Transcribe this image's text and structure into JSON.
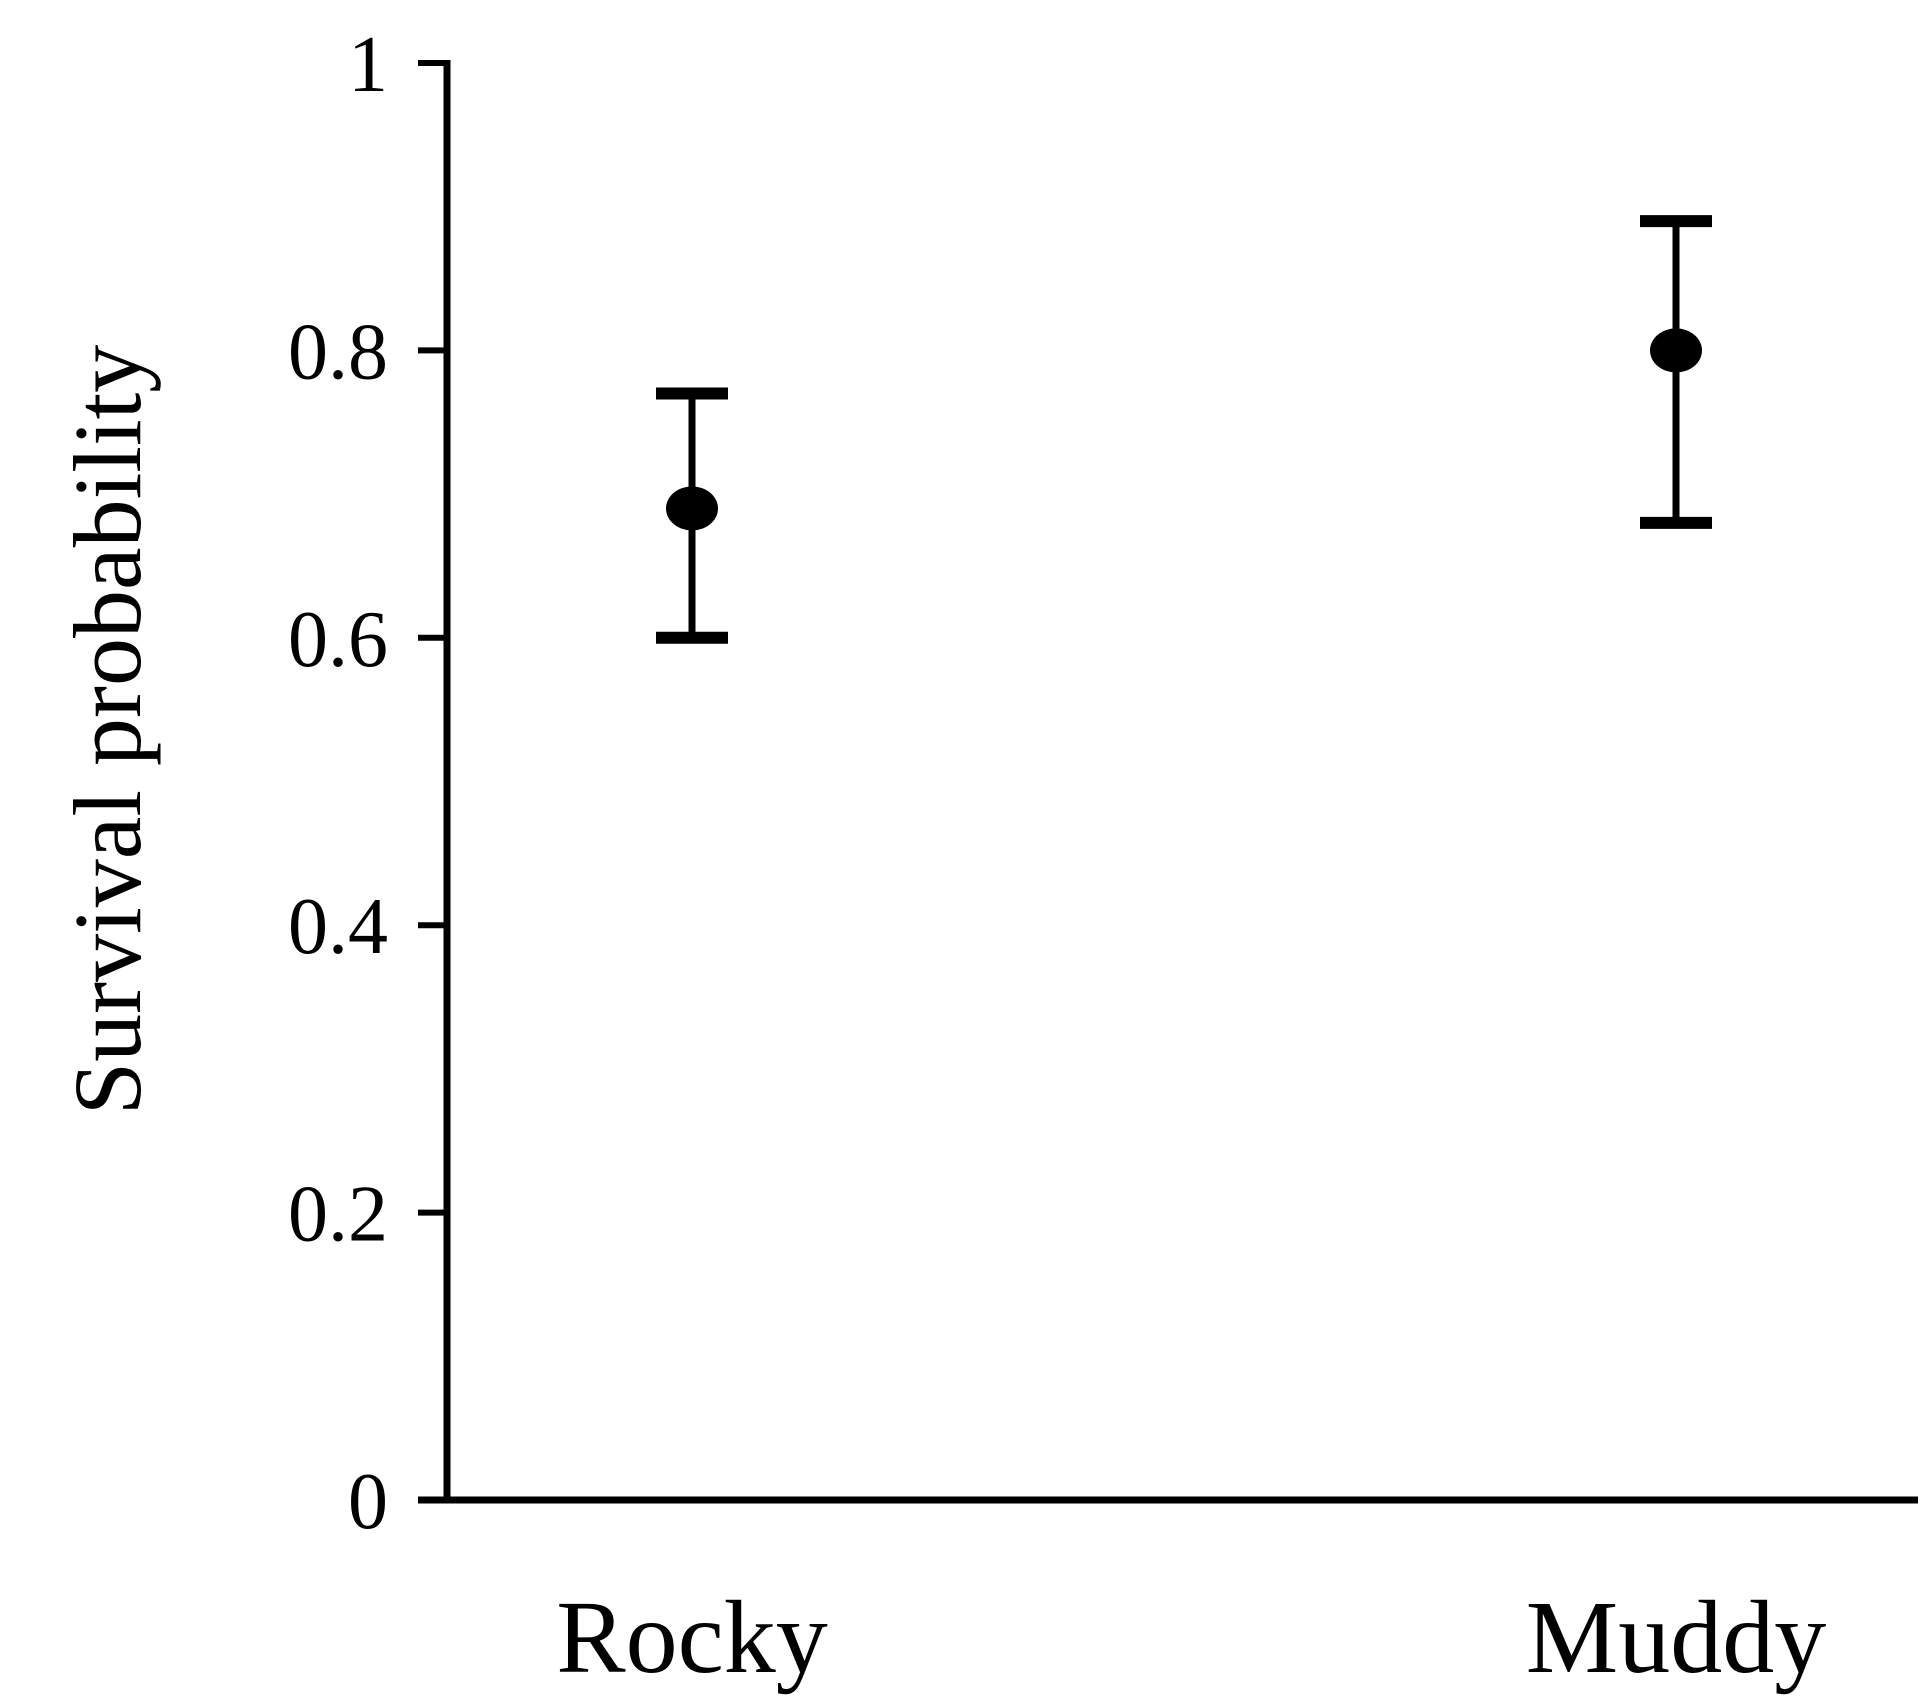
{
  "chart_data": {
    "type": "scatter",
    "title": "",
    "xlabel": "",
    "ylabel": "Survival probability",
    "categories": [
      "Rocky",
      "Muddy"
    ],
    "series": [
      {
        "values": [
          0.69,
          0.8
        ],
        "error_lower": [
          0.6,
          0.68
        ],
        "error_upper": [
          0.77,
          0.89
        ]
      }
    ],
    "ylim": [
      0,
      1
    ],
    "yticks": [
      0,
      0.2,
      0.4,
      0.6,
      0.8,
      1
    ],
    "ytick_labels": [
      "0",
      "0.2",
      "0.4",
      "0.6",
      "0.8",
      "1"
    ],
    "grid": false,
    "legend": "none",
    "marker": "filled-circle",
    "color": "#000000"
  }
}
